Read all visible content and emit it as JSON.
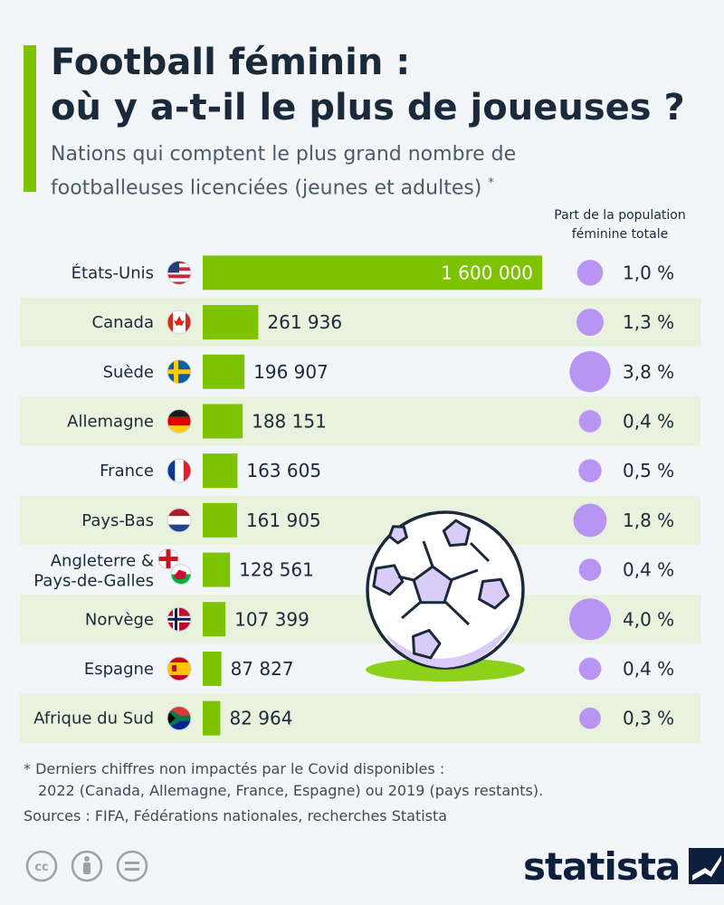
{
  "title_lines": [
    "Football féminin :",
    "où y a-t-il le plus de joueuses ?"
  ],
  "subtitle_lines": [
    "Nations qui comptent le plus grand nombre de",
    "footballeuses licenciées (jeunes et adultes)"
  ],
  "subtitle_marker": "*",
  "column_header": [
    "Part de la population",
    "féminine totale"
  ],
  "footnote_lines": [
    "* Derniers chiffres non impactés par le Covid disponibles :",
    "2022 (Canada, Allemagne, France, Espagne) ou 2019 (pays restants)."
  ],
  "sources": "Sources : FIFA, Fédérations nationales, recherches Statista",
  "brand": "statista",
  "colors": {
    "bar": "#7ec300",
    "bubble": "#b894f3",
    "stripe": "#e9f2dc",
    "accent": "#7ec300",
    "ball": "#ffffff",
    "grass": "#8cd11a"
  },
  "chart_data": {
    "type": "bar",
    "orientation": "horizontal",
    "categories": [
      "États-Unis",
      "Canada",
      "Suède",
      "Allemagne",
      "France",
      "Pays-Bas",
      "Angleterre & Pays-de-Galles",
      "Norvège",
      "Espagne",
      "Afrique du Sud"
    ],
    "category_lines": [
      [
        "États-Unis"
      ],
      [
        "Canada"
      ],
      [
        "Suède"
      ],
      [
        "Allemagne"
      ],
      [
        "France"
      ],
      [
        "Pays-Bas"
      ],
      [
        "Angleterre &",
        "Pays-de-Galles"
      ],
      [
        "Norvège"
      ],
      [
        "Espagne"
      ],
      [
        "Afrique du Sud"
      ]
    ],
    "values": [
      1600000,
      261936,
      196907,
      188151,
      163605,
      161905,
      128561,
      107399,
      87827,
      82964
    ],
    "value_labels": [
      "1 600 000",
      "261 936",
      "196 907",
      "188 151",
      "163 605",
      "161 905",
      "128 561",
      "107 399",
      "87 827",
      "82 964"
    ],
    "share_values": [
      1.0,
      1.3,
      3.8,
      0.4,
      0.5,
      1.8,
      0.4,
      4.0,
      0.4,
      0.3
    ],
    "share_labels": [
      "1,0 %",
      "1,3 %",
      "3,8 %",
      "0,4 %",
      "0,5 %",
      "1,8 %",
      "0,4 %",
      "4,0 %",
      "0,4 %",
      "0,3 %"
    ],
    "flags": [
      "us-flag-icon",
      "canada-flag-icon",
      "sweden-flag-icon",
      "germany-flag-icon",
      "france-flag-icon",
      "netherlands-flag-icon",
      "england-wales-flag-icon",
      "norway-flag-icon",
      "spain-flag-icon",
      "south-africa-flag-icon"
    ],
    "xlim": [
      0,
      1600000
    ]
  }
}
